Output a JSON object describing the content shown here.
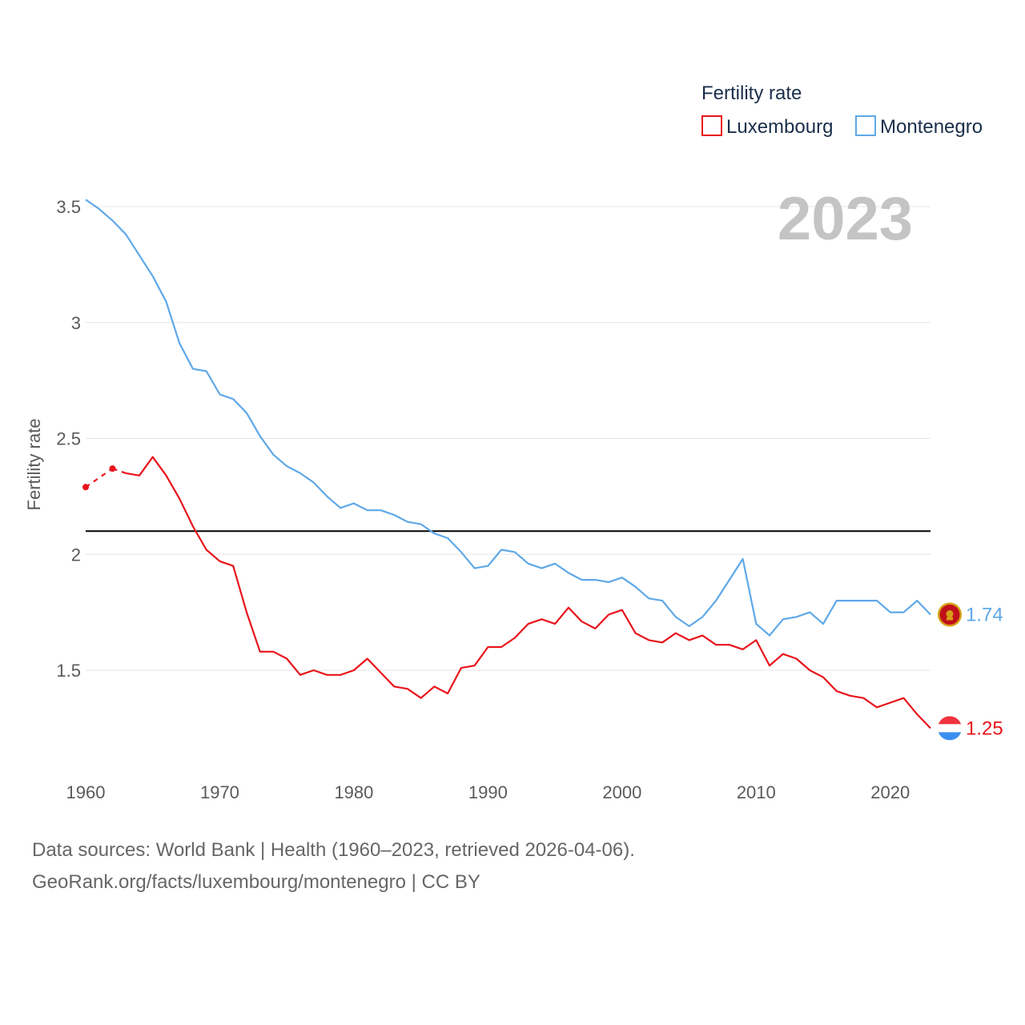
{
  "chart_data": {
    "type": "line",
    "ylabel": "Fertility rate",
    "xlabel": "",
    "legend_title": "Fertility rate",
    "legend_position": "top-right",
    "current_year_label": "2023",
    "xlim": [
      1960,
      2023
    ],
    "ylim": [
      1.1,
      3.55
    ],
    "x_ticks": [
      1960,
      1970,
      1980,
      1990,
      2000,
      2010,
      2020
    ],
    "x_tick_labels": [
      "1960",
      "1970",
      "1980",
      "1990",
      "2000",
      "2010",
      "2020"
    ],
    "y_ticks": [
      1.5,
      2,
      2.5,
      3,
      3.5
    ],
    "y_tick_labels": [
      "1.5",
      "2",
      "2.5",
      "3",
      "3.5"
    ],
    "grid": true,
    "reference_line": 2.1,
    "x": [
      1960,
      1961,
      1962,
      1963,
      1964,
      1965,
      1966,
      1967,
      1968,
      1969,
      1970,
      1971,
      1972,
      1973,
      1974,
      1975,
      1976,
      1977,
      1978,
      1979,
      1980,
      1981,
      1982,
      1983,
      1984,
      1985,
      1986,
      1987,
      1988,
      1989,
      1990,
      1991,
      1992,
      1993,
      1994,
      1995,
      1996,
      1997,
      1998,
      1999,
      2000,
      2001,
      2002,
      2003,
      2004,
      2005,
      2006,
      2007,
      2008,
      2009,
      2010,
      2011,
      2012,
      2013,
      2014,
      2015,
      2016,
      2017,
      2018,
      2019,
      2020,
      2021,
      2022,
      2023
    ],
    "series": [
      {
        "name": "Luxembourg",
        "color": "#e8141c",
        "end_label": "1.25",
        "flag": "luxembourg-flag",
        "values": [
          2.29,
          null,
          2.37,
          2.35,
          2.34,
          2.42,
          2.34,
          2.24,
          2.12,
          2.02,
          1.97,
          1.95,
          1.75,
          1.58,
          1.58,
          1.55,
          1.48,
          1.5,
          1.48,
          1.48,
          1.5,
          1.55,
          1.49,
          1.43,
          1.42,
          1.38,
          1.43,
          1.4,
          1.51,
          1.52,
          1.6,
          1.6,
          1.64,
          1.7,
          1.72,
          1.7,
          1.77,
          1.71,
          1.68,
          1.74,
          1.76,
          1.66,
          1.63,
          1.62,
          1.66,
          1.63,
          1.65,
          1.61,
          1.61,
          1.59,
          1.63,
          1.52,
          1.57,
          1.55,
          1.5,
          1.47,
          1.41,
          1.39,
          1.38,
          1.34,
          1.36,
          1.38,
          1.31,
          1.25
        ]
      },
      {
        "name": "Montenegro",
        "color": "#5fa8e8",
        "end_label": "1.74",
        "flag": "montenegro-flag",
        "values": [
          3.53,
          3.49,
          3.44,
          3.38,
          3.29,
          3.2,
          3.09,
          2.91,
          2.8,
          2.79,
          2.69,
          2.67,
          2.61,
          2.51,
          2.43,
          2.38,
          2.35,
          2.31,
          2.25,
          2.2,
          2.22,
          2.19,
          2.19,
          2.17,
          2.14,
          2.13,
          2.09,
          2.07,
          2.01,
          1.94,
          1.95,
          2.02,
          2.01,
          1.96,
          1.94,
          1.96,
          1.92,
          1.89,
          1.89,
          1.88,
          1.9,
          1.86,
          1.81,
          1.8,
          1.73,
          1.69,
          1.73,
          1.8,
          1.89,
          1.98,
          1.7,
          1.65,
          1.72,
          1.73,
          1.75,
          1.7,
          1.8,
          1.8,
          1.8,
          1.8,
          1.75,
          1.75,
          1.8,
          1.74
        ]
      }
    ]
  },
  "source": {
    "line1": "Data sources: World Bank | Health (1960–2023, retrieved 2026-04-06).",
    "line2": "GeoRank.org/facts/luxembourg/montenegro | CC BY"
  },
  "colors": {
    "grid": "#e6e6e6",
    "reference": "#000000",
    "tick_text": "#5a5a5a"
  }
}
